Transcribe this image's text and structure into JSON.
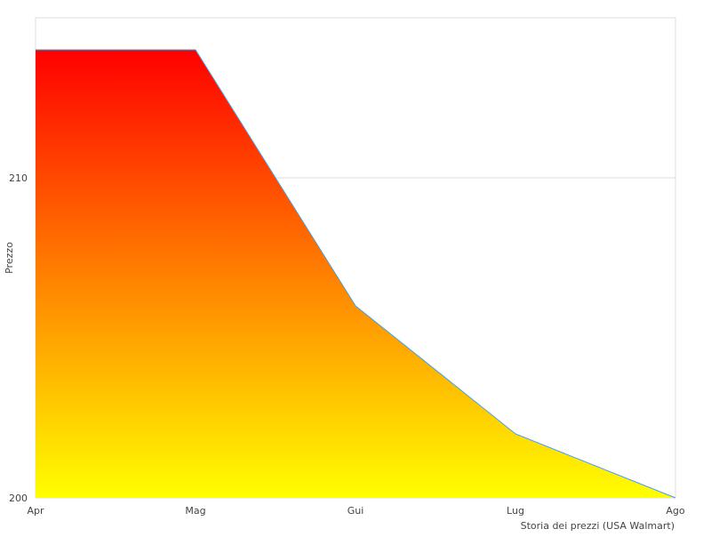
{
  "chart_data": {
    "type": "area",
    "title": "",
    "xlabel": "",
    "ylabel": "Prezzo",
    "caption": "Storia dei prezzi (USA Walmart)",
    "categories": [
      "Apr",
      "Mag",
      "Gui",
      "Lug",
      "Ago"
    ],
    "series": [
      {
        "values": [
          214,
          214,
          206,
          202,
          200
        ]
      }
    ],
    "y_ticks": [
      200,
      210
    ],
    "ylim": [
      200,
      215
    ],
    "grid": true,
    "legend": "none",
    "colors": {
      "fill_top": "#ff0000",
      "fill_bottom": "#ffff00",
      "line": "#4a9fd8",
      "grid": "#dddddd",
      "axis": "#cccccc"
    }
  }
}
